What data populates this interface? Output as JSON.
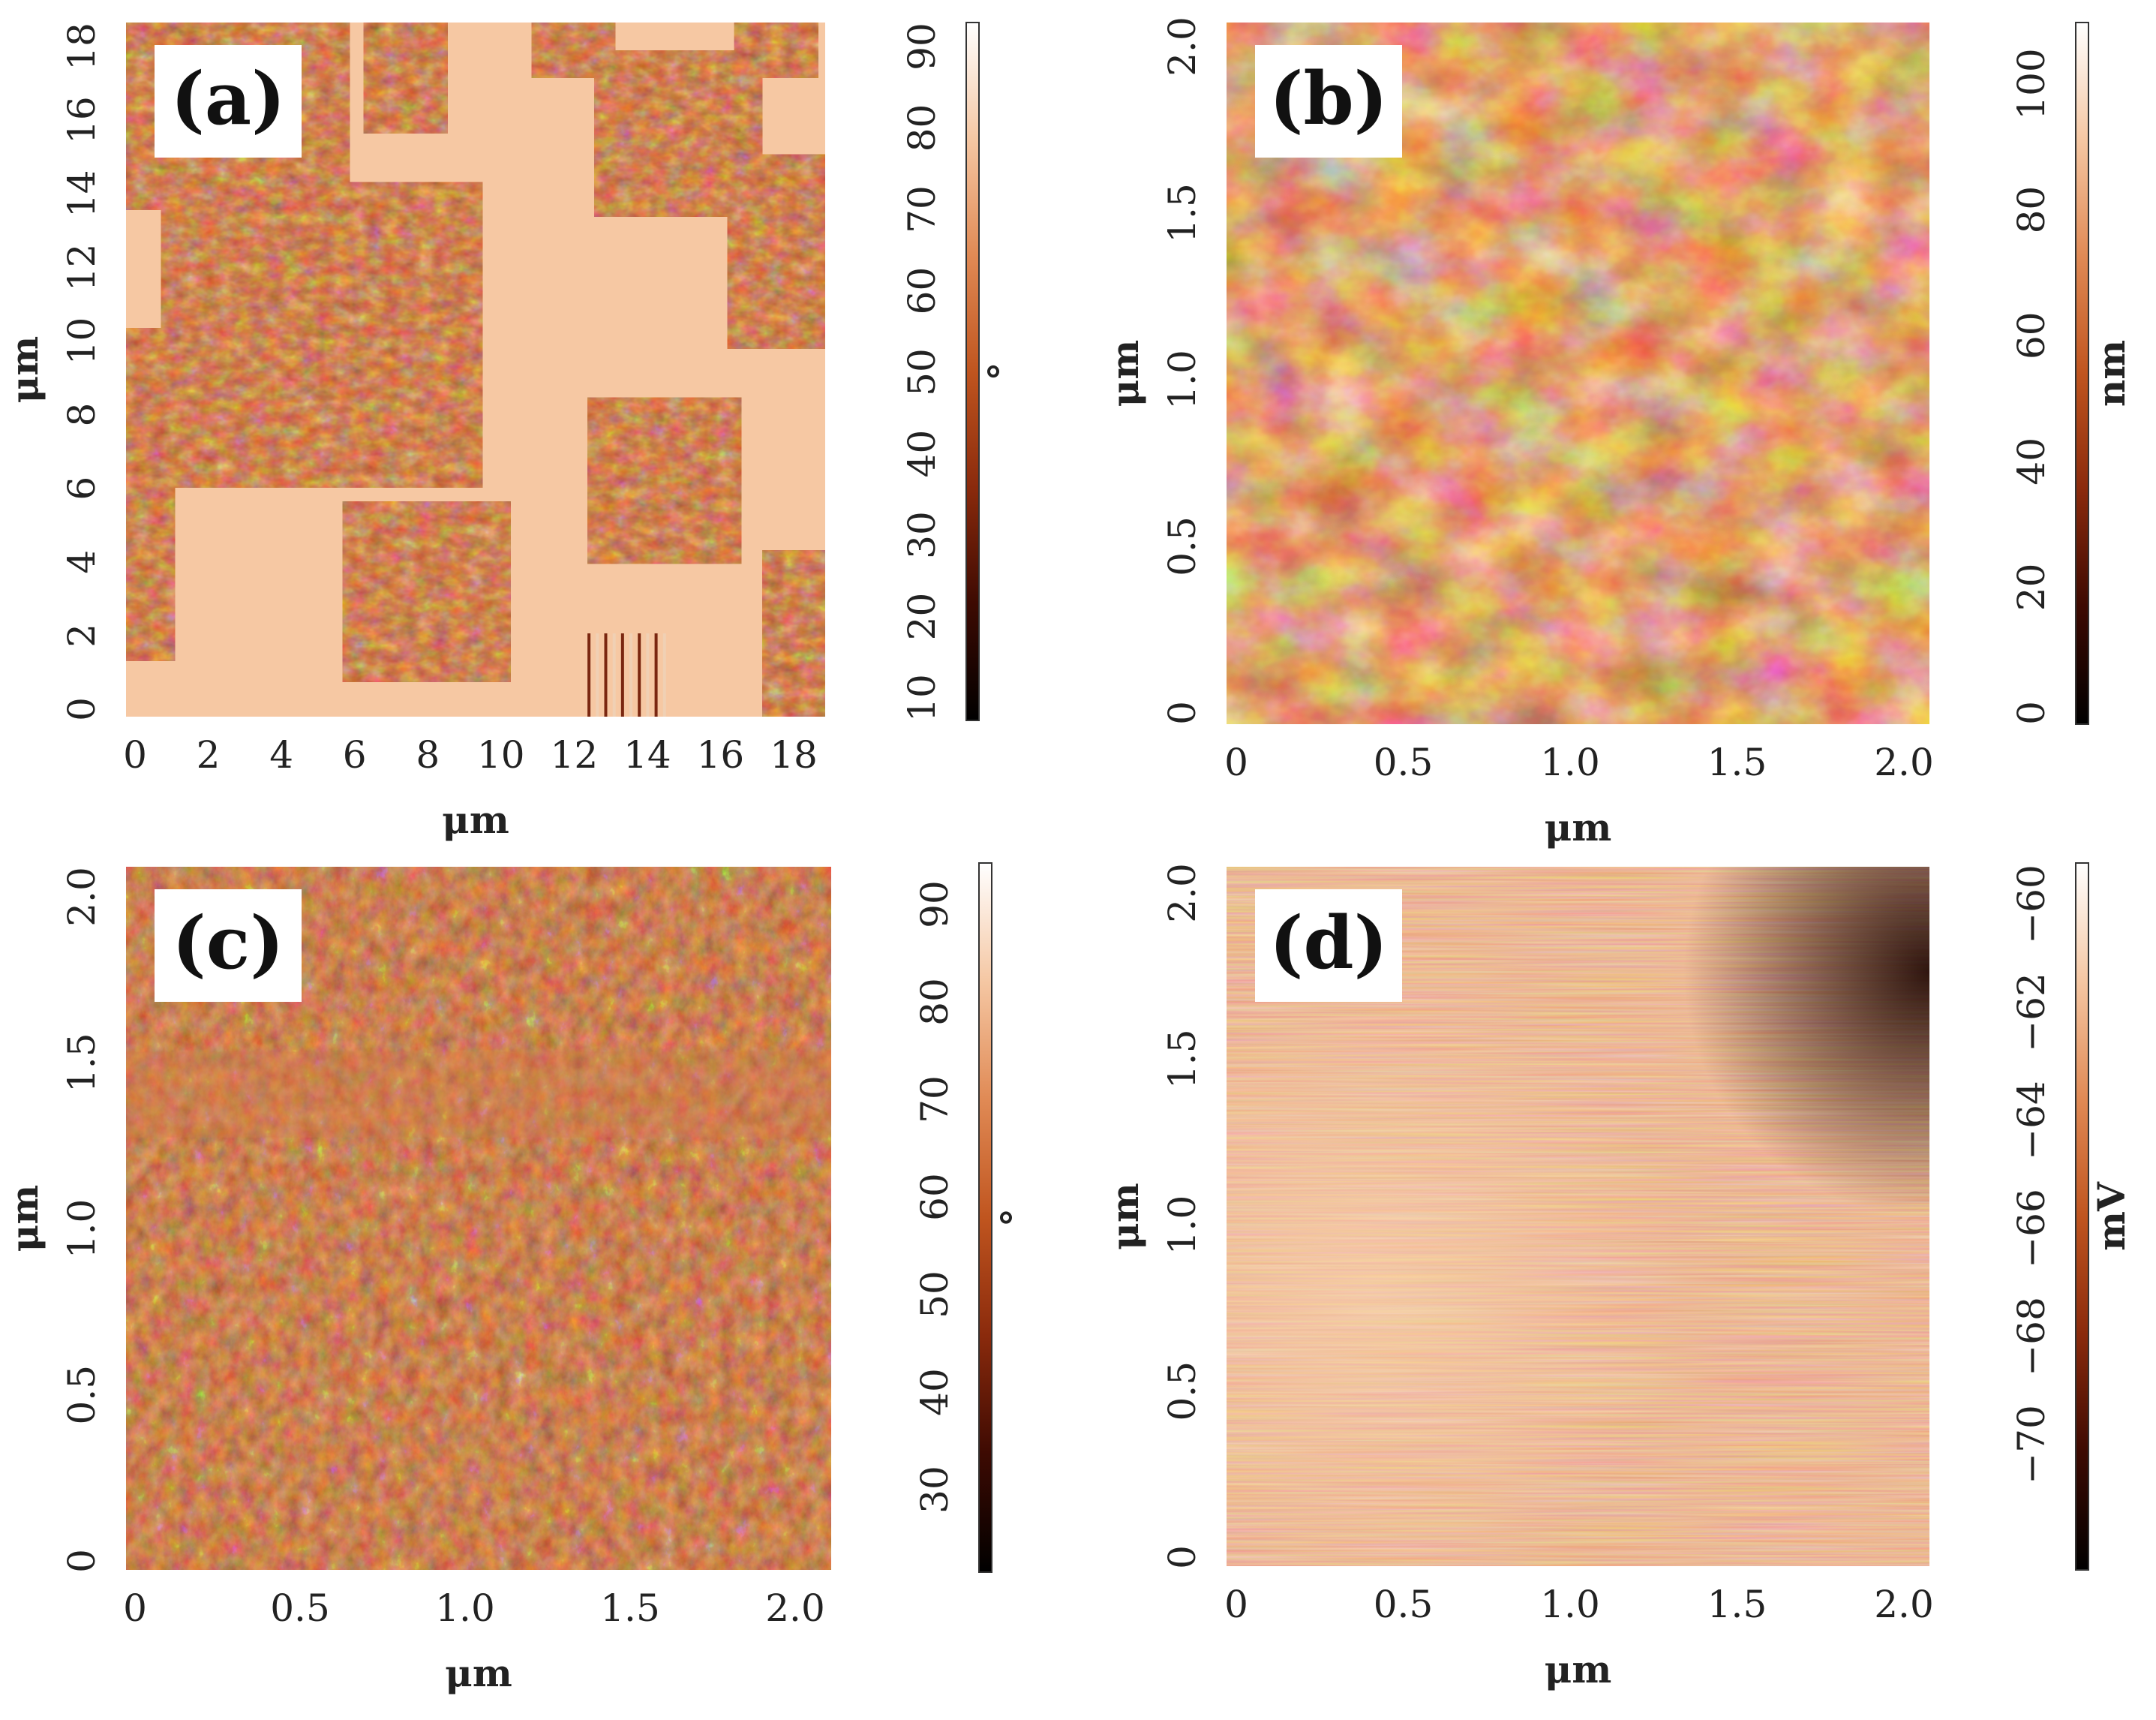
{
  "figure": {
    "panels": [
      {
        "id": "a",
        "label": "(a)",
        "x_axis_label": "μm",
        "y_axis_label": "μm",
        "x_ticks": [
          "0",
          "2",
          "4",
          "6",
          "8",
          "10",
          "12",
          "14",
          "16",
          "18"
        ],
        "y_ticks": [
          "0",
          "2",
          "4",
          "6",
          "8",
          "10",
          "12",
          "14",
          "16",
          "18"
        ],
        "colorbar_ticks": [
          "10",
          "20",
          "30",
          "40",
          "50",
          "60",
          "70",
          "80",
          "90"
        ],
        "colorbar_unit": "°",
        "image_style": "phase-flat-with-grains"
      },
      {
        "id": "b",
        "label": "(b)",
        "x_axis_label": "μm",
        "y_axis_label": "μm",
        "x_ticks": [
          "0",
          "0.5",
          "1.0",
          "1.5",
          "2.0"
        ],
        "y_ticks": [
          "0",
          "0.5",
          "1.0",
          "1.5",
          "2.0"
        ],
        "colorbar_ticks": [
          "0",
          "20",
          "40",
          "60",
          "80",
          "100"
        ],
        "colorbar_unit": "nm",
        "image_style": "height-topography"
      },
      {
        "id": "c",
        "label": "(c)",
        "x_axis_label": "μm",
        "y_axis_label": "μm",
        "x_ticks": [
          "0",
          "0.5",
          "1.0",
          "1.5",
          "2.0"
        ],
        "y_ticks": [
          "0",
          "0.5",
          "1.0",
          "1.5",
          "2.0"
        ],
        "colorbar_ticks": [
          "30",
          "40",
          "50",
          "60",
          "70",
          "80",
          "90"
        ],
        "colorbar_unit": "°",
        "image_style": "phase-texture"
      },
      {
        "id": "d",
        "label": "(d)",
        "x_axis_label": "μm",
        "y_axis_label": "μm",
        "x_ticks": [
          "0",
          "0.5",
          "1.0",
          "1.5",
          "2.0"
        ],
        "y_ticks": [
          "0",
          "0.5",
          "1.0",
          "1.5",
          "2.0"
        ],
        "colorbar_ticks": [
          "−70",
          "−68",
          "−66",
          "−64",
          "−62",
          "−60"
        ],
        "colorbar_unit": "mV",
        "image_style": "potential-smooth"
      }
    ],
    "colormap": [
      "#000000",
      "#3d0a02",
      "#8a2a0c",
      "#c0551f",
      "#e08a55",
      "#f5c7a3",
      "#ffffff"
    ]
  }
}
